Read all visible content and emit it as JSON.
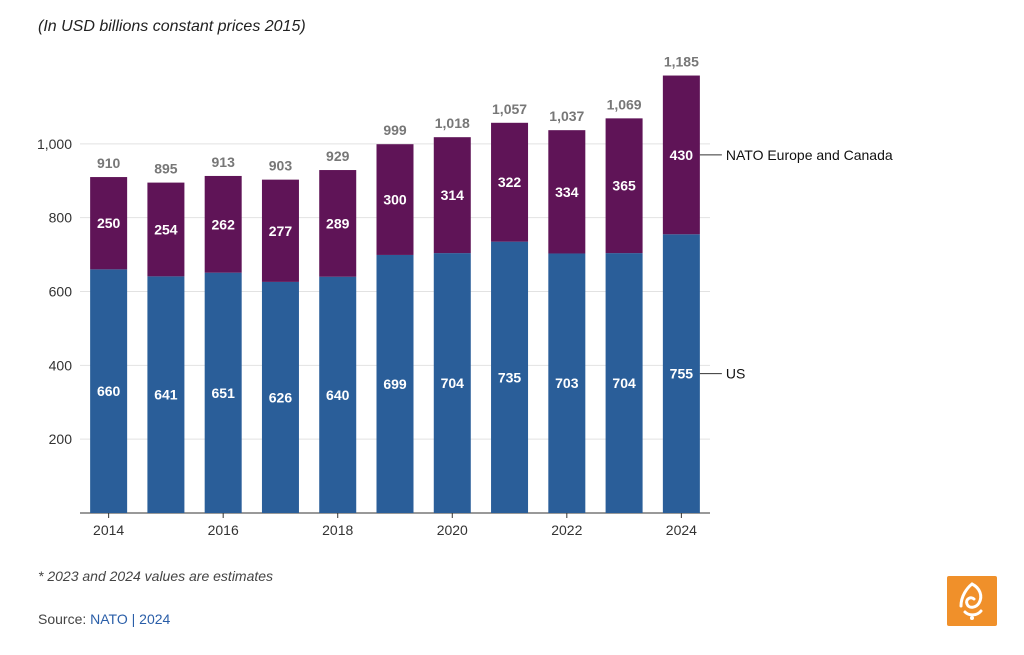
{
  "subtitle": "(In USD billions constant prices 2015)",
  "footnote": "* 2023 and 2024 values are estimates",
  "source": {
    "prefix": "Source: ",
    "link_text": "NATO | 2024"
  },
  "logo": {
    "icon": "al-jazeera-logo-icon",
    "color": "#f0902a"
  },
  "chart_data": {
    "type": "bar",
    "stacked": true,
    "title": "",
    "subtitle": "(In USD billions constant prices 2015)",
    "categories": [
      "2014",
      "2015",
      "2016",
      "2017",
      "2018",
      "2019",
      "2020",
      "2021",
      "2022",
      "2023",
      "2024"
    ],
    "x_tick_labels": [
      "2014",
      "",
      "2016",
      "",
      "2018",
      "",
      "2020",
      "",
      "2022",
      "",
      "2024"
    ],
    "series": [
      {
        "name": "US",
        "color": "#2a5e99",
        "values": [
          660,
          641,
          651,
          626,
          640,
          699,
          704,
          735,
          703,
          704,
          755
        ]
      },
      {
        "name": "NATO Europe and Canada",
        "color": "#5f1457",
        "values": [
          250,
          254,
          262,
          277,
          289,
          300,
          314,
          322,
          334,
          365,
          430
        ]
      }
    ],
    "totals": [
      "910",
      "895",
      "913",
      "903",
      "929",
      "999",
      "1,018",
      "1,057",
      "1,037",
      "1,069",
      "1,185"
    ],
    "ylim": [
      0,
      1200
    ],
    "y_ticks": [
      200,
      400,
      600,
      800,
      1000
    ],
    "y_tick_labels": [
      "200",
      "400",
      "600",
      "800",
      "1,000"
    ],
    "xlabel": "",
    "ylabel": "",
    "grid": true,
    "legend": "right"
  }
}
